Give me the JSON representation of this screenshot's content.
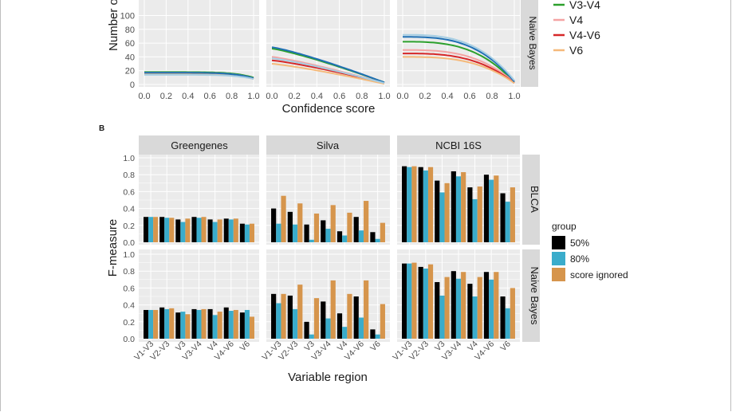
{
  "colors": {
    "panel_bg": "#ebebeb",
    "grid": "#ffffff",
    "strip_bg": "#d9d9d9",
    "text": "#1a1a1a",
    "axis_text": "#4d4d4d",
    "bar_50": "#000000",
    "bar_80": "#3aaccb",
    "bar_ignored": "#d6954c"
  },
  "panel_a": {
    "type": "line",
    "ylabel": "Number of",
    "xlabel": "Confidence score",
    "y_ticks": [
      "0",
      "20",
      "40",
      "60",
      "80",
      "100"
    ],
    "x_ticks": [
      "0.0",
      "0.2",
      "0.4",
      "0.6",
      "0.8",
      "1.0"
    ],
    "row_strip": "Naive Bayes",
    "legend": [
      {
        "name": "V3-V4",
        "color": "#2ca02c"
      },
      {
        "name": "V4",
        "color": "#f4a3a3"
      },
      {
        "name": "V4-V6",
        "color": "#d62728"
      },
      {
        "name": "V6",
        "color": "#f5b97a"
      }
    ],
    "extra_series_colors": [
      "#1f6fb4",
      "#a6cee3"
    ]
  },
  "chart_data": {
    "type": "bar",
    "panel_label": "B",
    "xlabel": "Variable region",
    "ylabel": "F-measure",
    "ylim": [
      0,
      1.0
    ],
    "y_ticks": [
      "0.0",
      "0.2",
      "0.4",
      "0.6",
      "0.8",
      "1.0"
    ],
    "categories": [
      "V1-V3",
      "V2-V3",
      "V3",
      "V3-V4",
      "V4",
      "V4-V6",
      "V6"
    ],
    "databases": [
      "Greengenes",
      "Silva",
      "NCBI 16S"
    ],
    "methods": [
      "BLCA",
      "Naive Bayes"
    ],
    "legend_title": "group",
    "legend_position": "right",
    "series_names": [
      "50%",
      "80%",
      "score ignored"
    ],
    "facets": [
      {
        "database": "Greengenes",
        "method": "BLCA",
        "series": [
          {
            "name": "50%",
            "values": [
              0.3,
              0.3,
              0.27,
              0.3,
              0.27,
              0.28,
              0.22
            ]
          },
          {
            "name": "80%",
            "values": [
              0.3,
              0.29,
              0.24,
              0.29,
              0.24,
              0.27,
              0.21
            ]
          },
          {
            "name": "score ignored",
            "values": [
              0.3,
              0.29,
              0.28,
              0.3,
              0.27,
              0.28,
              0.22
            ]
          }
        ]
      },
      {
        "database": "Silva",
        "method": "BLCA",
        "series": [
          {
            "name": "50%",
            "values": [
              0.4,
              0.36,
              0.21,
              0.26,
              0.13,
              0.3,
              0.12
            ]
          },
          {
            "name": "80%",
            "values": [
              0.22,
              0.21,
              0.03,
              0.16,
              0.08,
              0.14,
              0.04
            ]
          },
          {
            "name": "score ignored",
            "values": [
              0.55,
              0.46,
              0.34,
              0.44,
              0.35,
              0.49,
              0.23
            ]
          }
        ]
      },
      {
        "database": "NCBI 16S",
        "method": "BLCA",
        "series": [
          {
            "name": "50%",
            "values": [
              0.9,
              0.89,
              0.73,
              0.84,
              0.65,
              0.8,
              0.58
            ]
          },
          {
            "name": "80%",
            "values": [
              0.89,
              0.85,
              0.59,
              0.78,
              0.51,
              0.74,
              0.48
            ]
          },
          {
            "name": "score ignored",
            "values": [
              0.9,
              0.89,
              0.7,
              0.83,
              0.66,
              0.79,
              0.65
            ]
          }
        ]
      },
      {
        "database": "Greengenes",
        "method": "Naive Bayes",
        "series": [
          {
            "name": "50%",
            "values": [
              0.34,
              0.37,
              0.31,
              0.35,
              0.35,
              0.37,
              0.31
            ]
          },
          {
            "name": "80%",
            "values": [
              0.34,
              0.35,
              0.32,
              0.34,
              0.28,
              0.33,
              0.34
            ]
          },
          {
            "name": "score ignored",
            "values": [
              0.34,
              0.36,
              0.29,
              0.35,
              0.32,
              0.34,
              0.26
            ]
          }
        ]
      },
      {
        "database": "Silva",
        "method": "Naive Bayes",
        "series": [
          {
            "name": "50%",
            "values": [
              0.53,
              0.51,
              0.2,
              0.44,
              0.3,
              0.5,
              0.11
            ]
          },
          {
            "name": "80%",
            "values": [
              0.42,
              0.35,
              0.05,
              0.24,
              0.14,
              0.25,
              0.05
            ]
          },
          {
            "name": "score ignored",
            "values": [
              0.53,
              0.64,
              0.48,
              0.69,
              0.53,
              0.69,
              0.41
            ]
          }
        ]
      },
      {
        "database": "NCBI 16S",
        "method": "Naive Bayes",
        "series": [
          {
            "name": "50%",
            "values": [
              0.89,
              0.85,
              0.67,
              0.8,
              0.65,
              0.79,
              0.5
            ]
          },
          {
            "name": "80%",
            "values": [
              0.89,
              0.83,
              0.51,
              0.71,
              0.5,
              0.7,
              0.36
            ]
          },
          {
            "name": "score ignored",
            "values": [
              0.9,
              0.88,
              0.73,
              0.79,
              0.73,
              0.79,
              0.6
            ]
          }
        ]
      }
    ]
  }
}
